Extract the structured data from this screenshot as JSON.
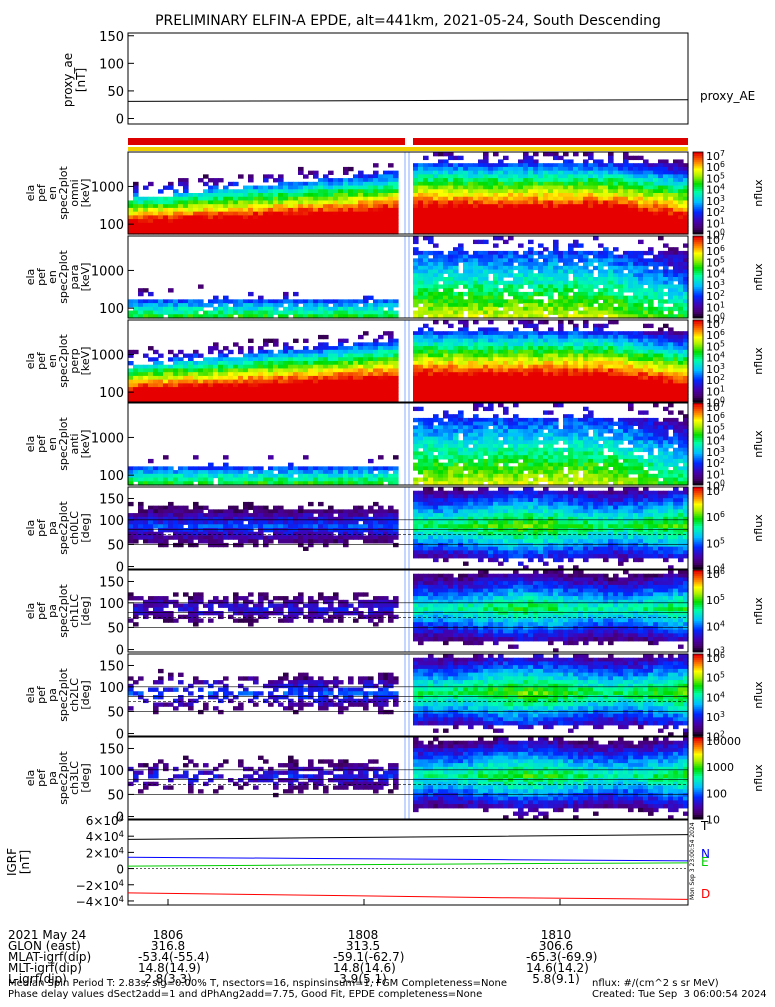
{
  "title": "PRELIMINARY ELFIN-A EPDE, alt=441km, 2021-05-24, South Descending",
  "proxy_ae": {
    "ylabel_lines": [
      "proxy_ae",
      "[nT]"
    ],
    "legend": "proxy_AE",
    "yticks": [
      "150",
      "100",
      "50",
      "0"
    ],
    "ylim": [
      -10,
      155
    ]
  },
  "spec_panels": [
    {
      "ylabel_lines": [
        "ela",
        "pef",
        "en",
        "spec2plot",
        "omni",
        "[keV]"
      ],
      "yticks": [
        "1000",
        "100"
      ],
      "cb_ticks": [
        "10^7",
        "10^6",
        "10^5",
        "10^4",
        "10^3",
        "10^2",
        "10^1",
        "10^0"
      ],
      "cb_label": "nflux"
    },
    {
      "ylabel_lines": [
        "ela",
        "pef",
        "en",
        "spec2plot",
        "para",
        "[keV]"
      ],
      "yticks": [
        "1000",
        "100"
      ],
      "cb_ticks": [
        "10^7",
        "10^6",
        "10^5",
        "10^4",
        "10^3",
        "10^2",
        "10^1",
        "10^0"
      ],
      "cb_label": "nflux"
    },
    {
      "ylabel_lines": [
        "ela",
        "pef",
        "en",
        "spec2plot",
        "perp",
        "[keV]"
      ],
      "yticks": [
        "1000",
        "100"
      ],
      "cb_ticks": [
        "10^7",
        "10^6",
        "10^5",
        "10^4",
        "10^3",
        "10^2",
        "10^1",
        "10^0"
      ],
      "cb_label": "nflux"
    },
    {
      "ylabel_lines": [
        "ela",
        "pef",
        "en",
        "spec2plot",
        "anti",
        "[keV]"
      ],
      "yticks": [
        "1000",
        "100"
      ],
      "cb_ticks": [
        "10^7",
        "10^6",
        "10^5",
        "10^4",
        "10^3",
        "10^2",
        "10^1",
        "10^0"
      ],
      "cb_label": "nflux"
    },
    {
      "ylabel_lines": [
        "ela",
        "pef",
        "pa",
        "spec2plot",
        "ch0LC",
        "[deg]"
      ],
      "yticks": [
        "150",
        "100",
        "50",
        "0"
      ],
      "cb_ticks": [
        "10^7",
        "10^6",
        "10^5",
        "10^4"
      ],
      "cb_label": "nflux"
    },
    {
      "ylabel_lines": [
        "ela",
        "pef",
        "pa",
        "spec2plot",
        "ch1LC",
        "[deg]"
      ],
      "yticks": [
        "150",
        "100",
        "50",
        "0"
      ],
      "cb_ticks": [
        "10^6",
        "10^5",
        "10^4",
        "10^3"
      ],
      "cb_label": "nflux"
    },
    {
      "ylabel_lines": [
        "ela",
        "pef",
        "pa",
        "spec2plot",
        "ch2LC",
        "[deg]"
      ],
      "yticks": [
        "150",
        "100",
        "50",
        "0"
      ],
      "cb_ticks": [
        "10^6",
        "10^5",
        "10^4",
        "10^3",
        "10^2"
      ],
      "cb_label": "nflux"
    },
    {
      "ylabel_lines": [
        "ela",
        "pef",
        "pa",
        "spec2plot",
        "ch3LC",
        "[deg]"
      ],
      "yticks": [
        "150",
        "100",
        "50",
        "0"
      ],
      "cb_ticks": [
        "10000",
        "1000",
        "100",
        "10"
      ],
      "cb_label": "nflux"
    }
  ],
  "igrf": {
    "ylabel_lines": [
      "IGRF",
      "[nT]"
    ],
    "yticks": [
      "6×10^4",
      "4×10^4",
      "2×10^4",
      "0",
      "−2×10^4",
      "−4×10^4"
    ],
    "legend": [
      "T",
      "N",
      "E",
      "D"
    ],
    "legend_colors": [
      "#000000",
      "#0000ff",
      "#00cc00",
      "#ff0000"
    ]
  },
  "timestamp_vertical": "Mon Sep  3 23:00:54 2024",
  "chart_data": {
    "type": "heatmap",
    "title": "PRELIMINARY ELFIN-A EPDE, alt=441km, 2021-05-24, South Descending",
    "xlabel": "",
    "x_ticks": [
      "1806",
      "1808",
      "1810"
    ],
    "series": [
      {
        "name": "proxy_AE",
        "y_approx": [
          31,
          32,
          33,
          34
        ]
      },
      {
        "name": "T",
        "units": "nT",
        "y_approx": [
          36000,
          38000,
          40000,
          42000
        ]
      },
      {
        "name": "N",
        "units": "nT",
        "y_approx": [
          14000,
          12500,
          11000,
          9500
        ]
      },
      {
        "name": "E",
        "units": "nT",
        "y_approx": [
          3000,
          4500,
          6000,
          7000
        ]
      },
      {
        "name": "D",
        "units": "nT",
        "y_approx": [
          -30000,
          -33000,
          -36000,
          -38000
        ]
      }
    ]
  },
  "ephemeris": {
    "rows": [
      {
        "label": "2021 May 24",
        "values": [
          "1806",
          "1808",
          "1810"
        ]
      },
      {
        "label": "GLON (east)",
        "values": [
          "316.8",
          "313.5",
          "306.6"
        ]
      },
      {
        "label": "MLAT-igrf(dip)",
        "values": [
          "-53.4(-55.4)",
          "-59.1(-62.7)",
          "-65.3(-69.9)"
        ]
      },
      {
        "label": "MLT-igrf(dip)",
        "values": [
          "14.8(14.9)",
          "14.8(14.6)",
          "14.6(14.2)"
        ]
      },
      {
        "label": "L-igrf(dip)",
        "values": [
          "2.8(3.3)",
          "3.9(5.1)",
          "5.8(9.1)"
        ]
      }
    ]
  },
  "footer": {
    "line1": "Median Spin Period T: 2.83s, sig=0.00% T, nsectors=16, nspinsinsum=1, FGM Completeness=None",
    "line2": "Phase delay values dSect2add=1 and dPhAng2add=7.75, Good Fit, EPDE completeness=None",
    "units": "nflux: #/(cm^2 s sr MeV)",
    "created": "Created: Tue Sep  3 06:00:54 2024"
  }
}
